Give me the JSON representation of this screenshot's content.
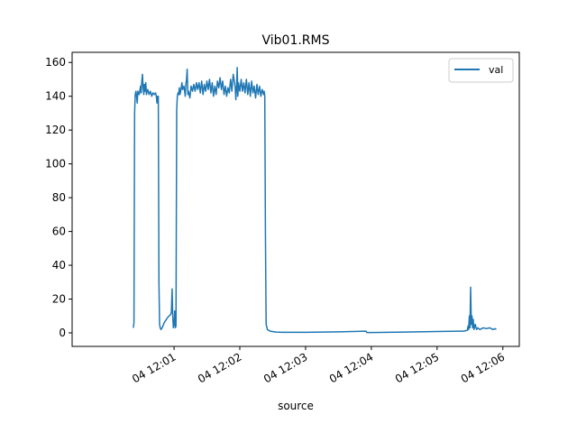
{
  "chart_data": {
    "type": "line",
    "title": "Vib01.RMS",
    "xlabel": "source",
    "ylabel": "",
    "ylim": [
      -8,
      166
    ],
    "xlim_minutes": [
      -0.55,
      6.25
    ],
    "x_ticks": [
      {
        "value": 1,
        "label": "04 12:01"
      },
      {
        "value": 2,
        "label": "04 12:02"
      },
      {
        "value": 3,
        "label": "04 12:03"
      },
      {
        "value": 4,
        "label": "04 12:04"
      },
      {
        "value": 5,
        "label": "04 12:05"
      },
      {
        "value": 6,
        "label": "04 12:06"
      }
    ],
    "y_ticks": [
      0,
      20,
      40,
      60,
      80,
      100,
      120,
      140,
      160
    ],
    "legend": {
      "placement": "top-right"
    },
    "grid": false,
    "series": [
      {
        "name": "val",
        "color": "#1f77b4",
        "points": [
          [
            0.38,
            3
          ],
          [
            0.39,
            6
          ],
          [
            0.4,
            130
          ],
          [
            0.41,
            141
          ],
          [
            0.42,
            143
          ],
          [
            0.43,
            140
          ],
          [
            0.44,
            136
          ],
          [
            0.45,
            143
          ],
          [
            0.47,
            141
          ],
          [
            0.49,
            146
          ],
          [
            0.5,
            142
          ],
          [
            0.51,
            149
          ],
          [
            0.52,
            153
          ],
          [
            0.53,
            145
          ],
          [
            0.54,
            141
          ],
          [
            0.55,
            147
          ],
          [
            0.56,
            143
          ],
          [
            0.57,
            148
          ],
          [
            0.58,
            141
          ],
          [
            0.6,
            144
          ],
          [
            0.62,
            141
          ],
          [
            0.64,
            143
          ],
          [
            0.66,
            140
          ],
          [
            0.68,
            142
          ],
          [
            0.7,
            141
          ],
          [
            0.72,
            142
          ],
          [
            0.73,
            140
          ],
          [
            0.74,
            136
          ],
          [
            0.75,
            140
          ],
          [
            0.76,
            140
          ],
          [
            0.77,
            30
          ],
          [
            0.78,
            5
          ],
          [
            0.79,
            3
          ],
          [
            0.8,
            2
          ],
          [
            0.82,
            3
          ],
          [
            0.85,
            6
          ],
          [
            0.9,
            9
          ],
          [
            0.95,
            11
          ],
          [
            0.96,
            12
          ],
          [
            0.97,
            26
          ],
          [
            0.98,
            10
          ],
          [
            0.99,
            3
          ],
          [
            1.0,
            5
          ],
          [
            1.01,
            13
          ],
          [
            1.02,
            3
          ],
          [
            1.03,
            4
          ],
          [
            1.04,
            132
          ],
          [
            1.05,
            140
          ],
          [
            1.06,
            142
          ],
          [
            1.07,
            141
          ],
          [
            1.08,
            145
          ],
          [
            1.09,
            141
          ],
          [
            1.1,
            143
          ],
          [
            1.12,
            148
          ],
          [
            1.13,
            144
          ],
          [
            1.15,
            146
          ],
          [
            1.17,
            140
          ],
          [
            1.18,
            147
          ],
          [
            1.19,
            150
          ],
          [
            1.2,
            156
          ],
          [
            1.21,
            141
          ],
          [
            1.22,
            143
          ],
          [
            1.24,
            139
          ],
          [
            1.26,
            146
          ],
          [
            1.28,
            143
          ],
          [
            1.3,
            147
          ],
          [
            1.32,
            143
          ],
          [
            1.34,
            148
          ],
          [
            1.36,
            144
          ],
          [
            1.38,
            148
          ],
          [
            1.4,
            142
          ],
          [
            1.42,
            149
          ],
          [
            1.44,
            141
          ],
          [
            1.46,
            147
          ],
          [
            1.48,
            143
          ],
          [
            1.5,
            149
          ],
          [
            1.52,
            144
          ],
          [
            1.54,
            150
          ],
          [
            1.56,
            142
          ],
          [
            1.58,
            148
          ],
          [
            1.6,
            140
          ],
          [
            1.62,
            146
          ],
          [
            1.64,
            141
          ],
          [
            1.66,
            149
          ],
          [
            1.68,
            145
          ],
          [
            1.7,
            151
          ],
          [
            1.72,
            144
          ],
          [
            1.74,
            149
          ],
          [
            1.76,
            141
          ],
          [
            1.78,
            146
          ],
          [
            1.8,
            140
          ],
          [
            1.82,
            145
          ],
          [
            1.84,
            142
          ],
          [
            1.86,
            150
          ],
          [
            1.88,
            143
          ],
          [
            1.9,
            153
          ],
          [
            1.92,
            148
          ],
          [
            1.93,
            145
          ],
          [
            1.94,
            138
          ],
          [
            1.95,
            145
          ],
          [
            1.96,
            157
          ],
          [
            1.97,
            140
          ],
          [
            1.98,
            148
          ],
          [
            2.0,
            143
          ],
          [
            2.02,
            150
          ],
          [
            2.04,
            143
          ],
          [
            2.06,
            148
          ],
          [
            2.08,
            142
          ],
          [
            2.1,
            150
          ],
          [
            2.12,
            141
          ],
          [
            2.14,
            148
          ],
          [
            2.16,
            140
          ],
          [
            2.18,
            149
          ],
          [
            2.2,
            142
          ],
          [
            2.22,
            146
          ],
          [
            2.24,
            139
          ],
          [
            2.26,
            147
          ],
          [
            2.28,
            141
          ],
          [
            2.3,
            146
          ],
          [
            2.32,
            140
          ],
          [
            2.34,
            144
          ],
          [
            2.36,
            141
          ],
          [
            2.37,
            143
          ],
          [
            2.38,
            140
          ],
          [
            2.39,
            60
          ],
          [
            2.4,
            5
          ],
          [
            2.42,
            2
          ],
          [
            2.46,
            1
          ],
          [
            2.55,
            0.5
          ],
          [
            2.65,
            0.3
          ],
          [
            3.0,
            0.3
          ],
          [
            3.5,
            0.6
          ],
          [
            3.85,
            0.9
          ],
          [
            3.92,
            1
          ],
          [
            3.93,
            0.2
          ],
          [
            4.0,
            0.2
          ],
          [
            4.5,
            0.5
          ],
          [
            5.0,
            0.8
          ],
          [
            5.4,
            1
          ],
          [
            5.46,
            1.5
          ],
          [
            5.47,
            4
          ],
          [
            5.48,
            2
          ],
          [
            5.49,
            10
          ],
          [
            5.5,
            3
          ],
          [
            5.51,
            27
          ],
          [
            5.52,
            5
          ],
          [
            5.53,
            10
          ],
          [
            5.54,
            3
          ],
          [
            5.55,
            8
          ],
          [
            5.56,
            2
          ],
          [
            5.58,
            5
          ],
          [
            5.6,
            2
          ],
          [
            5.62,
            3
          ],
          [
            5.65,
            2
          ],
          [
            5.7,
            3
          ],
          [
            5.75,
            2.5
          ],
          [
            5.8,
            3
          ],
          [
            5.85,
            2
          ],
          [
            5.88,
            2.5
          ],
          [
            5.9,
            2
          ]
        ]
      }
    ]
  }
}
